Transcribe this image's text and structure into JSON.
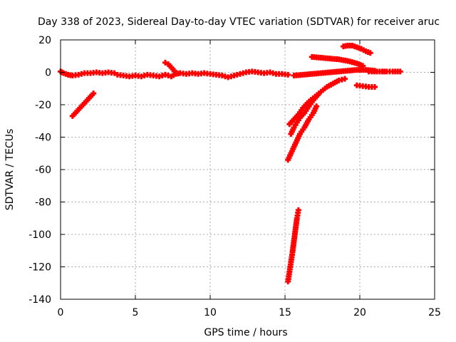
{
  "chart_data": {
    "type": "scatter",
    "title": "Day 338 of 2023, Sidereal Day-to-day VTEC variation (SDTVAR) for receiver aruc",
    "xlabel": "GPS time / hours",
    "ylabel": "SDTVAR / TECUs",
    "xlim": [
      0,
      25
    ],
    "ylim": [
      -140,
      20
    ],
    "xticks": [
      "0",
      "5",
      "10",
      "15",
      "20",
      "25"
    ],
    "yticks": [
      "20",
      "0",
      "-20",
      "-40",
      "-60",
      "-80",
      "-100",
      "-120",
      "-140"
    ],
    "grid": true,
    "legend": "none",
    "marker": "plus",
    "color": "#ff0000",
    "series": [
      {
        "points": [
          [
            0.0,
            0.5
          ],
          [
            0.1,
            0.0
          ],
          [
            0.2,
            -0.5
          ],
          [
            0.5,
            -1.5
          ],
          [
            0.8,
            -2.0
          ],
          [
            1.2,
            -1.5
          ],
          [
            1.6,
            -0.5
          ],
          [
            2.0,
            -0.5
          ],
          [
            2.4,
            0.0
          ],
          [
            2.8,
            -0.5
          ],
          [
            3.2,
            0.0
          ],
          [
            3.6,
            -0.5
          ]
        ]
      },
      {
        "points": [
          [
            0.8,
            -27
          ],
          [
            1.0,
            -25
          ],
          [
            1.2,
            -23
          ],
          [
            1.4,
            -21
          ],
          [
            1.6,
            -19
          ],
          [
            1.8,
            -17
          ],
          [
            2.0,
            -15
          ],
          [
            2.2,
            -13
          ]
        ]
      },
      {
        "points": [
          [
            3.8,
            -1.5
          ],
          [
            4.2,
            -2.0
          ],
          [
            4.6,
            -2.5
          ],
          [
            5.0,
            -2.0
          ],
          [
            5.4,
            -2.5
          ],
          [
            5.8,
            -1.5
          ],
          [
            6.2,
            -2.0
          ],
          [
            6.6,
            -2.5
          ],
          [
            7.0,
            -1.5
          ],
          [
            7.4,
            -2.5
          ],
          [
            7.7,
            -1.0
          ],
          [
            8.0,
            -0.5
          ],
          [
            8.4,
            -1.0
          ],
          [
            8.8,
            -0.5
          ],
          [
            9.2,
            -1.0
          ],
          [
            9.6,
            -0.5
          ],
          [
            10.0,
            -1.0
          ],
          [
            10.4,
            -1.5
          ],
          [
            10.8,
            -2.0
          ],
          [
            11.2,
            -3.0
          ],
          [
            11.6,
            -2.0
          ],
          [
            12.0,
            -1.0
          ],
          [
            12.4,
            0.0
          ],
          [
            12.8,
            0.5
          ],
          [
            13.2,
            0.0
          ],
          [
            13.6,
            -0.5
          ],
          [
            14.0,
            0.0
          ],
          [
            14.4,
            -1.0
          ],
          [
            14.8,
            -1.0
          ],
          [
            15.2,
            -1.5
          ]
        ]
      },
      {
        "points": [
          [
            7.0,
            6
          ],
          [
            7.2,
            5
          ],
          [
            7.4,
            3
          ],
          [
            7.5,
            2
          ],
          [
            7.6,
            1
          ]
        ]
      },
      {
        "points": [
          [
            15.6,
            -2.0
          ],
          [
            16.2,
            -1.5
          ],
          [
            16.8,
            -1.0
          ],
          [
            17.4,
            -0.5
          ],
          [
            18.0,
            0.0
          ],
          [
            18.6,
            0.5
          ],
          [
            19.2,
            1.0
          ],
          [
            19.8,
            1.5
          ],
          [
            20.4,
            1.5
          ],
          [
            21.0,
            1.0
          ]
        ]
      },
      {
        "points": [
          [
            15.3,
            -32
          ],
          [
            15.5,
            -30
          ],
          [
            15.7,
            -28
          ],
          [
            15.9,
            -26
          ],
          [
            16.2,
            -22
          ],
          [
            16.6,
            -18
          ],
          [
            17.0,
            -15
          ],
          [
            17.4,
            -12
          ],
          [
            17.8,
            -9
          ],
          [
            18.2,
            -7
          ],
          [
            18.6,
            -5
          ],
          [
            19.0,
            -4
          ]
        ]
      },
      {
        "points": [
          [
            15.4,
            -38
          ],
          [
            15.6,
            -34
          ],
          [
            15.8,
            -31
          ],
          [
            16.0,
            -28
          ],
          [
            16.3,
            -25
          ],
          [
            16.6,
            -21
          ],
          [
            16.9,
            -17
          ],
          [
            17.2,
            -14
          ]
        ]
      },
      {
        "points": [
          [
            15.2,
            -54
          ],
          [
            15.4,
            -50
          ],
          [
            15.6,
            -46
          ],
          [
            15.8,
            -42
          ],
          [
            16.0,
            -38
          ],
          [
            16.3,
            -34
          ],
          [
            16.6,
            -29
          ],
          [
            16.9,
            -25
          ],
          [
            17.1,
            -21
          ]
        ]
      },
      {
        "points": [
          [
            15.2,
            -129
          ],
          [
            15.3,
            -123
          ],
          [
            15.4,
            -117
          ],
          [
            15.5,
            -111
          ],
          [
            15.6,
            -104
          ],
          [
            15.7,
            -97
          ],
          [
            15.8,
            -90
          ],
          [
            15.9,
            -85
          ]
        ]
      },
      {
        "points": [
          [
            16.8,
            9.5
          ],
          [
            17.4,
            9
          ],
          [
            18.0,
            8.5
          ],
          [
            18.6,
            8
          ],
          [
            19.2,
            7
          ],
          [
            19.8,
            5.5
          ],
          [
            20.2,
            4
          ]
        ]
      },
      {
        "points": [
          [
            18.9,
            16
          ],
          [
            19.2,
            16.5
          ],
          [
            19.5,
            16.5
          ],
          [
            19.8,
            15.5
          ],
          [
            20.1,
            14.5
          ],
          [
            20.4,
            13
          ],
          [
            20.7,
            12
          ]
        ]
      },
      {
        "points": [
          [
            19.8,
            -8
          ],
          [
            20.2,
            -8.5
          ],
          [
            20.6,
            -9
          ],
          [
            21.0,
            -9
          ]
        ]
      },
      {
        "points": [
          [
            20.6,
            0.5
          ],
          [
            20.8,
            0.5
          ],
          [
            21.5,
            0.5
          ],
          [
            21.8,
            0.5
          ],
          [
            22.2,
            0.5
          ],
          [
            22.7,
            0.5
          ]
        ]
      }
    ]
  }
}
